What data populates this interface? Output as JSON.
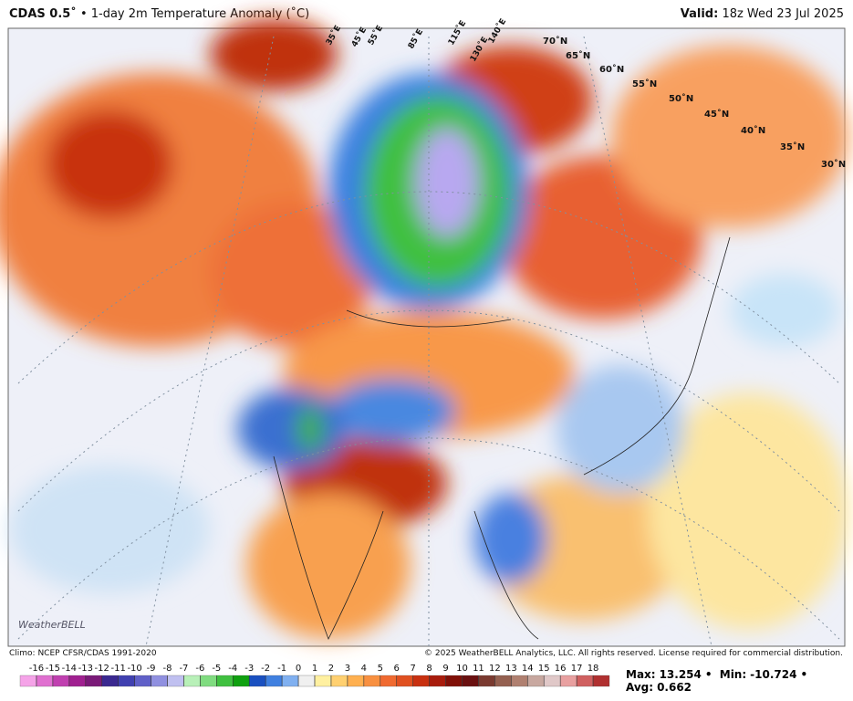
{
  "header": {
    "product": "CDAS 0.5˚",
    "subtitle": "• 1-day 2m Temperature Anomaly (˚C)",
    "valid_label": "Valid:",
    "valid_value": "18z Wed 23 Jul 2025"
  },
  "map": {
    "lat_labels": [
      "70˚N",
      "65˚N",
      "60˚N",
      "55˚N",
      "50˚N",
      "45˚N",
      "40˚N",
      "35˚N",
      "30˚N"
    ],
    "lon_labels": [
      "35˚E",
      "45˚E",
      "55˚E",
      "85˚E",
      "115˚E",
      "130˚E",
      "140˚E"
    ],
    "logo": "WeatherBELL"
  },
  "footer": {
    "climo": "Climo: NCEP CFSR/CDAS 1991-2020",
    "copyright": "© 2025 WeatherBELL Analytics, LLC. All rights reserved. License required for commercial distribution."
  },
  "colorbar": {
    "labels": [
      -16,
      -15,
      -14,
      -13,
      -12,
      -11,
      -10,
      -9,
      -8,
      -7,
      -6,
      -5,
      -4,
      -3,
      -2,
      -1,
      0,
      1,
      2,
      3,
      4,
      5,
      6,
      7,
      8,
      9,
      10,
      11,
      12,
      13,
      14,
      15,
      16,
      17,
      18
    ],
    "colors": [
      "#f5a3e8",
      "#e070d0",
      "#c040b0",
      "#a02090",
      "#7a1a78",
      "#3a2890",
      "#4040b0",
      "#6060c8",
      "#9090e0",
      "#c0c0f0",
      "#b8f0b8",
      "#80dc80",
      "#40c040",
      "#10a010",
      "#1a50c0",
      "#4080e0",
      "#80b0f0",
      "#f0f0f0",
      "#fff0a0",
      "#ffd070",
      "#ffb050",
      "#f89040",
      "#f06a30",
      "#e05020",
      "#c83010",
      "#a81c0c",
      "#801008",
      "#6a1010",
      "#7a3a30",
      "#946050",
      "#b08070",
      "#c8a8a0",
      "#e0c8c8",
      "#e8a0a0",
      "#d06060",
      "#b03030"
    ]
  },
  "stats": {
    "max_label": "Max:",
    "max": 13.254,
    "min_label": "Min:",
    "min": -10.724,
    "avg_label": "Avg:",
    "avg": 0.662,
    "separator": "•"
  }
}
